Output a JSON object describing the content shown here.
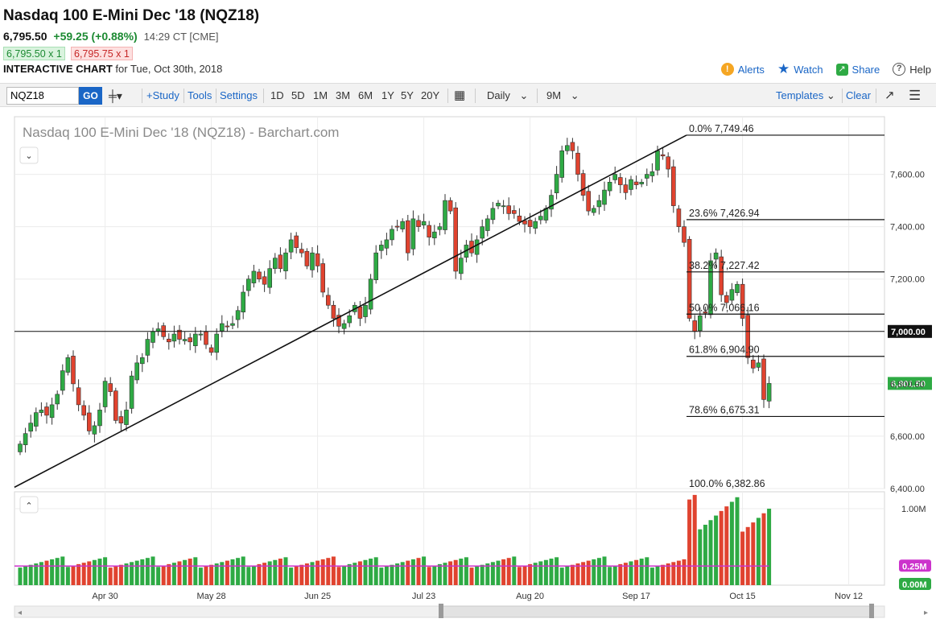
{
  "header": {
    "title": "Nasdaq 100 E-Mini Dec '18 (NQZ18)",
    "last": "6,795.50",
    "change": "+59.25 (+0.88%)",
    "time": "14:29 CT [CME]",
    "bid": "6,795.50 x 1",
    "ask": "6,795.75 x 1",
    "interactive_label": "INTERACTIVE CHART",
    "for_date": "for Tue, Oct 30th, 2018"
  },
  "links": {
    "alerts": "Alerts",
    "watch": "Watch",
    "share": "Share",
    "help": "Help"
  },
  "toolbar": {
    "symbol": "NQZ18",
    "go": "GO",
    "study": "+Study",
    "tools": "Tools",
    "settings": "Settings",
    "periods": [
      "1D",
      "5D",
      "1M",
      "3M",
      "6M",
      "1Y",
      "5Y",
      "20Y"
    ],
    "interval": "Daily",
    "range": "9M",
    "templates": "Templates",
    "clear": "Clear"
  },
  "colors": {
    "up": "#2eaa44",
    "down": "#e0432f",
    "accent": "#1a66c6",
    "volume_avg": "#cc33cc"
  },
  "chart_data": {
    "type": "candlestick",
    "title": "Nasdaq 100 E-Mini Dec '18 (NQZ18) - Barchart.com",
    "price_ticks": [
      "7,600.00",
      "7,400.00",
      "7,200.00",
      "7,000.00",
      "6,800.00",
      "6,600.00",
      "6,400.00"
    ],
    "ylim": [
      6400,
      7820
    ],
    "x_ticks": [
      "Apr 30",
      "May 28",
      "Jun 25",
      "Jul 23",
      "Aug 20",
      "Sep 17",
      "Oct 15",
      "Nov 12"
    ],
    "current_price_label": "6,801.50",
    "current_price": 6801.5,
    "reference_line_label": "7,000.00",
    "reference_line": 7000,
    "fibonacci": [
      {
        "label": "0.0%",
        "value": "7,749.46",
        "price": 7749.46
      },
      {
        "label": "23.6%",
        "value": "7,426.94",
        "price": 7426.94
      },
      {
        "label": "38.2%",
        "value": "7,227.42",
        "price": 7227.42
      },
      {
        "label": "50.0%",
        "value": "7,066.16",
        "price": 7066.16
      },
      {
        "label": "61.8%",
        "value": "6,904.90",
        "price": 6904.9
      },
      {
        "label": "78.6%",
        "value": "6,675.31",
        "price": 6675.31
      },
      {
        "label": "100.0%",
        "value": "6,382.86",
        "price": 6382.86
      }
    ],
    "trendline": [
      {
        "date": "Apr 9",
        "price": 6405
      },
      {
        "date": "Oct 2",
        "price": 7749.46
      }
    ],
    "closes": [
      6570,
      6610,
      6650,
      6690,
      6700,
      6680,
      6720,
      6760,
      6850,
      6900,
      6800,
      6720,
      6680,
      6620,
      6640,
      6700,
      6810,
      6770,
      6660,
      6650,
      6700,
      6830,
      6880,
      6900,
      6970,
      7000,
      7010,
      6980,
      6960,
      6990,
      6970,
      6970,
      6960,
      6990,
      6990,
      6950,
      6920,
      6990,
      7030,
      7020,
      7030,
      7080,
      7150,
      7200,
      7230,
      7200,
      7180,
      7240,
      7280,
      7240,
      7300,
      7350,
      7320,
      7300,
      7250,
      7300,
      7250,
      7150,
      7100,
      7050,
      7020,
      7030,
      7060,
      7100,
      7050,
      7100,
      7200,
      7300,
      7330,
      7350,
      7390,
      7400,
      7420,
      7300,
      7430,
      7400,
      7420,
      7360,
      7380,
      7400,
      7500,
      7460,
      7230,
      7280,
      7330,
      7300,
      7350,
      7400,
      7430,
      7470,
      7490,
      7480,
      7450,
      7450,
      7420,
      7410,
      7400,
      7420,
      7440,
      7470,
      7520,
      7600,
      7690,
      7710,
      7690,
      7600,
      7520,
      7460,
      7470,
      7500,
      7540,
      7570,
      7600,
      7560,
      7530,
      7580,
      7560,
      7570,
      7600,
      7610,
      7690,
      7670,
      7620,
      7480,
      7400,
      7340,
      7050,
      7000,
      7060,
      7070,
      7270,
      7300,
      7140,
      7110,
      7160,
      7180,
      7050,
      6900,
      6860,
      6880,
      6740,
      6801.5
    ],
    "volume_ticks": [
      "1.00M",
      "0.25M",
      "0.00M"
    ],
    "volume_avg_value": "0.25M",
    "volume_ylim": [
      0,
      1200000
    ]
  }
}
